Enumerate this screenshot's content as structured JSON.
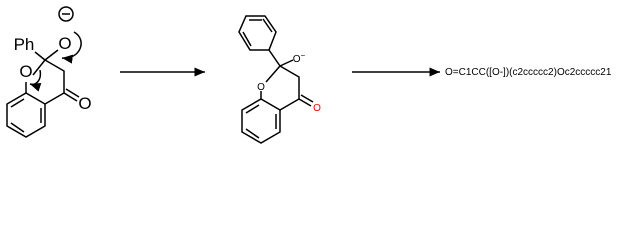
{
  "reactant": {
    "phenyl_label": "Ph",
    "oxide_label": "O",
    "ring_oxygen_label": "O",
    "carbonyl_oxygen_label": "O"
  },
  "intermediate": {
    "ring_oxygen_label": "O",
    "oxide_label": "O",
    "oxide_charge": "−",
    "carbonyl_oxygen_label": "O"
  },
  "product_smiles": "O=C1CC([O-])(c2ccccc2)Oc2ccccc21"
}
